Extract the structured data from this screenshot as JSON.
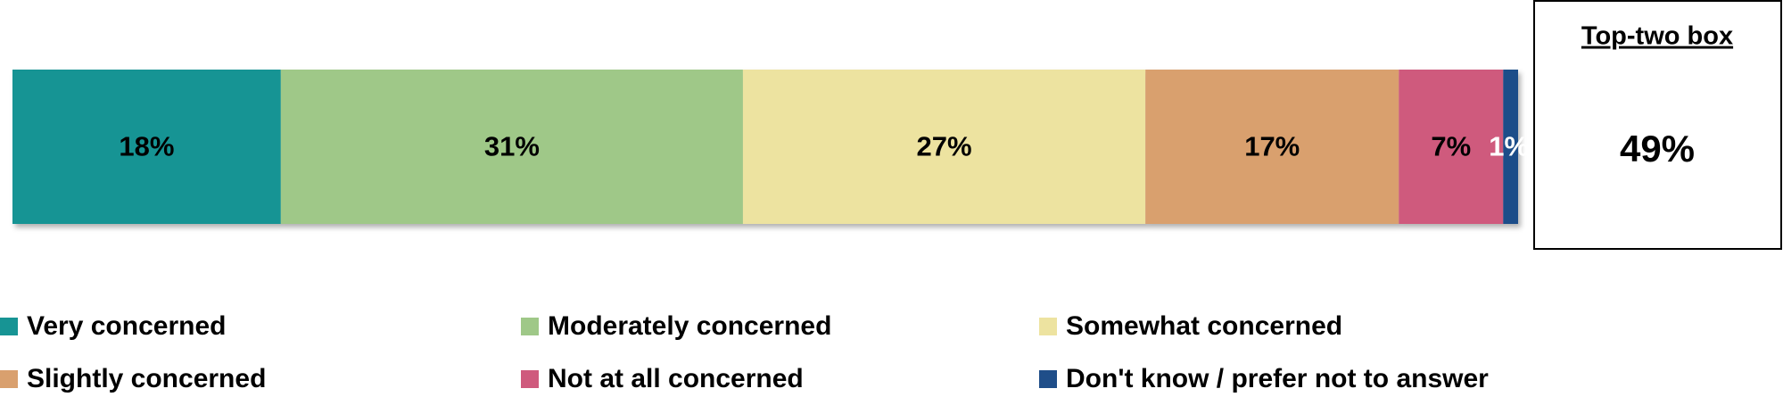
{
  "chart_data": {
    "type": "bar",
    "orientation": "horizontal",
    "stacked": true,
    "series": [
      {
        "name": "Very concerned",
        "color": "#179494",
        "values": [
          18
        ],
        "value_labels": [
          "18%"
        ]
      },
      {
        "name": "Moderately concerned",
        "color": "#9fc888",
        "values": [
          31
        ],
        "value_labels": [
          "31%"
        ]
      },
      {
        "name": "Somewhat concerned",
        "color": "#ede3a0",
        "values": [
          27
        ],
        "value_labels": [
          "27%"
        ]
      },
      {
        "name": "Slightly concerned",
        "color": "#d9a06e",
        "values": [
          17
        ],
        "value_labels": [
          "17%"
        ]
      },
      {
        "name": "Not at all concerned",
        "color": "#cf5a7d",
        "values": [
          7
        ],
        "value_labels": [
          "7%"
        ]
      },
      {
        "name": "Don't know / prefer not to answer",
        "color": "#1f4e89",
        "values": [
          1
        ],
        "value_labels": [
          "1%"
        ]
      }
    ],
    "summary_box": {
      "title": "Top-two box",
      "values": [
        49
      ],
      "value_labels": [
        "49%"
      ]
    }
  }
}
